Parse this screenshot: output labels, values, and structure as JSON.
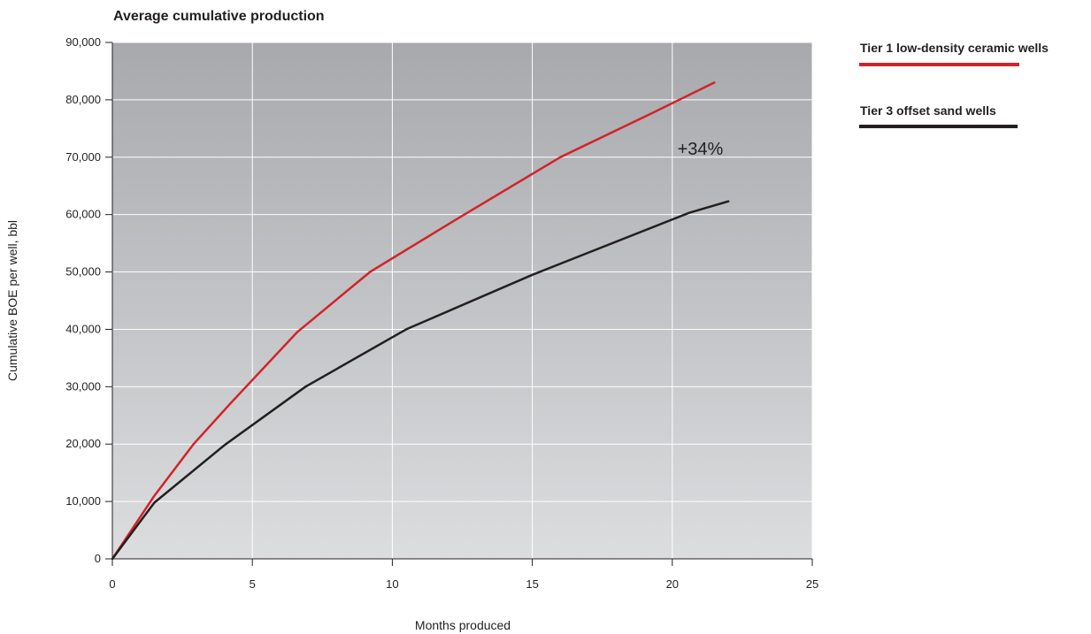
{
  "chart_data": {
    "type": "line",
    "title": "Average cumulative production",
    "xlabel": "Months produced",
    "ylabel": "Cumulative BOE per well, bbl",
    "xlim": [
      0,
      25
    ],
    "ylim": [
      0,
      90000
    ],
    "x_ticks": [
      0,
      5,
      10,
      15,
      20,
      25
    ],
    "x_tick_labels": [
      "0",
      "5",
      "10",
      "15",
      "20",
      "25"
    ],
    "y_ticks": [
      0,
      10000,
      20000,
      30000,
      40000,
      50000,
      60000,
      70000,
      80000,
      90000
    ],
    "y_tick_labels": [
      "0",
      "10,000",
      "20,000",
      "30,000",
      "40,000",
      "50,000",
      "60,000",
      "70,000",
      "80,000",
      "90,000"
    ],
    "grid": true,
    "legend_position": "right",
    "colors": {
      "plot_top": "#a7a9ac",
      "plot_bottom": "#dcdddf",
      "grid": "#ffffff",
      "tier1": "#d2232a",
      "tier3": "#231f20"
    },
    "series": [
      {
        "name": "Tier 1 low-density ceramic wells",
        "color": "#d2232a",
        "x": [
          0,
          1.5,
          2.9,
          4.2,
          6.6,
          9.2,
          12.4,
          16.0,
          19.2,
          21.5
        ],
        "y": [
          0,
          11000,
          20000,
          27000,
          39500,
          50000,
          59500,
          70000,
          77500,
          83000
        ]
      },
      {
        "name": "Tier 3 offset sand wells",
        "color": "#231f20",
        "x": [
          0,
          1.5,
          4.0,
          6.9,
          10.5,
          15.0,
          20.6,
          22.0
        ],
        "y": [
          0,
          9800,
          19800,
          30000,
          40000,
          49500,
          60300,
          62300
        ]
      }
    ],
    "annotations": [
      {
        "text": "+34%",
        "x": 21.0,
        "y": 71500
      }
    ]
  }
}
